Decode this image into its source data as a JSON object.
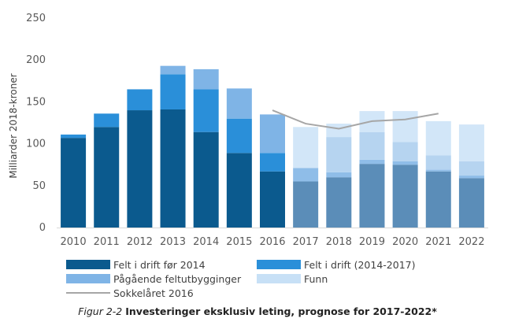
{
  "chart_data": {
    "type": "bar",
    "stacked": true,
    "categories": [
      "2010",
      "2011",
      "2012",
      "2013",
      "2014",
      "2015",
      "2016",
      "2017",
      "2018",
      "2019",
      "2020",
      "2021",
      "2022"
    ],
    "ylabel": "Milliarder 2018-kroner",
    "ylim": [
      0,
      250
    ],
    "yticks": [
      "0",
      "50",
      "100",
      "150",
      "200",
      "250"
    ],
    "forecast_from": "2017",
    "series": [
      {
        "name": "Felt i drift før 2014",
        "color": "#0b5a8e",
        "forecast_color": "#5b8db8",
        "values": [
          107,
          120,
          140,
          141,
          114,
          89,
          67,
          55,
          60,
          76,
          75,
          67,
          59
        ]
      },
      {
        "name": "Felt i drift (2014-2017)",
        "color": "#2a8fd9",
        "forecast_color": "#8fbde8",
        "values": [
          4,
          16,
          25,
          42,
          51,
          41,
          22,
          16,
          6,
          5,
          4,
          2,
          3
        ]
      },
      {
        "name": "Pågående feltutbygginger",
        "color": "#7fb4e6",
        "forecast_color": "#b6d4f0",
        "values": [
          0,
          0,
          0,
          10,
          24,
          36,
          46,
          0,
          42,
          33,
          23,
          17,
          17
        ]
      },
      {
        "name": "Funn",
        "color": "#c7e0f6",
        "forecast_color": "#d2e6f8",
        "values": [
          0,
          0,
          0,
          0,
          0,
          0,
          0,
          49,
          16,
          25,
          37,
          41,
          44
        ]
      }
    ],
    "line": {
      "name": "Sokkelåret 2016",
      "color": "#a6a6a6",
      "x": [
        "2016",
        "2017",
        "2018",
        "2019",
        "2020",
        "2021"
      ],
      "values": [
        140,
        124,
        118,
        127,
        129,
        136
      ]
    },
    "legend_position": "bottom"
  },
  "caption": {
    "figure": "Figur 2-2",
    "title": "Investeringer eksklusiv leting, prognose for 2017-2022*"
  }
}
